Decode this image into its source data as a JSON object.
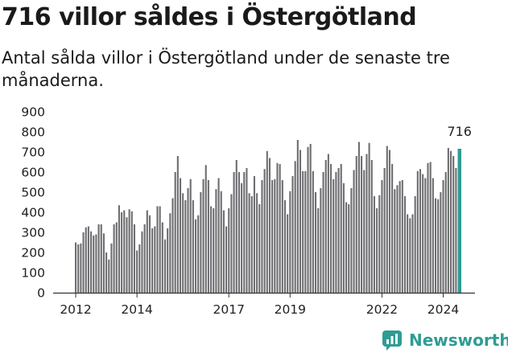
{
  "title": "716 villor såldes i Östergötland",
  "subtitle": "Antal sålda villor i Östergötland under de senaste tre månaderna.",
  "brand": {
    "name": "Newsworthy",
    "icon": "newsworthy-logo-icon",
    "color": "#2f9c93"
  },
  "chart_data": {
    "type": "bar",
    "title": "716 villor såldes i Östergötland",
    "xlabel": "",
    "ylabel": "",
    "ylim": [
      0,
      900
    ],
    "yticks": [
      0,
      100,
      200,
      300,
      400,
      500,
      600,
      700,
      800,
      900
    ],
    "xticks": [
      "2012",
      "2014",
      "2017",
      "2019",
      "2022",
      "2024"
    ],
    "grid": false,
    "legend": "none",
    "bar_color": "#6e6e72",
    "highlight_color": "#2f9c93",
    "highlight_label": "716",
    "values": [
      250,
      240,
      245,
      300,
      325,
      330,
      305,
      285,
      290,
      340,
      340,
      295,
      200,
      165,
      245,
      340,
      350,
      435,
      400,
      410,
      375,
      415,
      405,
      340,
      210,
      240,
      305,
      340,
      410,
      385,
      320,
      330,
      430,
      430,
      350,
      265,
      320,
      395,
      470,
      600,
      680,
      570,
      495,
      460,
      520,
      565,
      460,
      365,
      385,
      500,
      565,
      635,
      560,
      430,
      420,
      515,
      570,
      505,
      410,
      330,
      420,
      490,
      600,
      660,
      600,
      545,
      600,
      620,
      495,
      480,
      580,
      495,
      440,
      560,
      615,
      705,
      670,
      560,
      565,
      645,
      640,
      560,
      460,
      390,
      505,
      580,
      655,
      760,
      710,
      605,
      605,
      725,
      740,
      605,
      500,
      420,
      520,
      600,
      660,
      690,
      640,
      565,
      600,
      620,
      640,
      545,
      450,
      440,
      520,
      610,
      680,
      750,
      680,
      610,
      690,
      745,
      660,
      480,
      420,
      485,
      560,
      620,
      730,
      710,
      640,
      515,
      535,
      555,
      560,
      480,
      390,
      370,
      390,
      480,
      605,
      615,
      590,
      570,
      645,
      650,
      570,
      470,
      465,
      500,
      560,
      600,
      720,
      705,
      680,
      620,
      716
    ]
  }
}
